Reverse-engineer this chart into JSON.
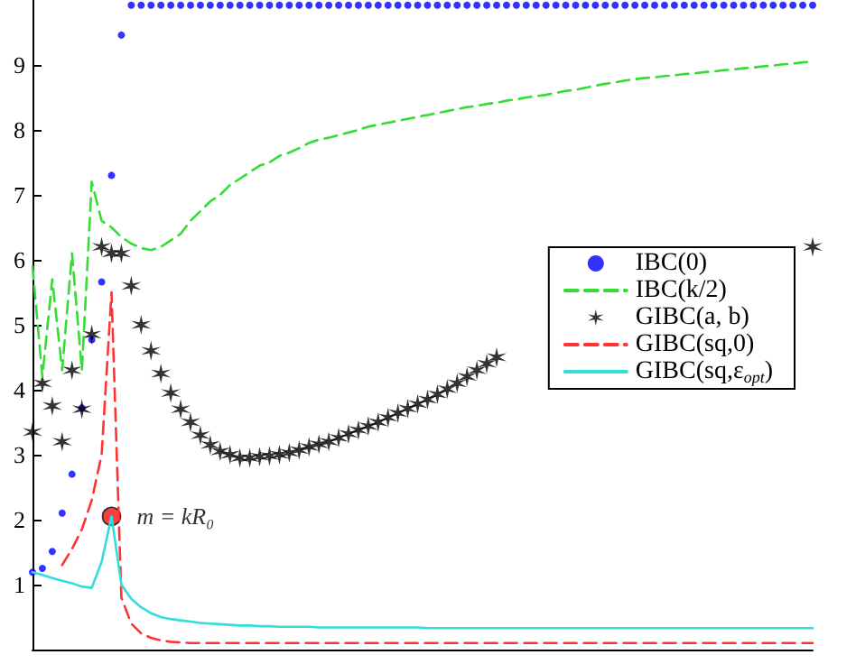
{
  "chart_data": {
    "type": "line",
    "categories": [
      null,
      null,
      null,
      null,
      null,
      null,
      null,
      null,
      null,
      null,
      null,
      null,
      null,
      null,
      null,
      null,
      null,
      null,
      null,
      null,
      null,
      null,
      null,
      null,
      null,
      null,
      null,
      null,
      null,
      null,
      null,
      null,
      null,
      null,
      null,
      null,
      null,
      null,
      null,
      null,
      null,
      null,
      null,
      null,
      null,
      null,
      null,
      null,
      null,
      null,
      null,
      null,
      null,
      null,
      null,
      null,
      null,
      null,
      null,
      null,
      null,
      null,
      null,
      null,
      null,
      null,
      null,
      null,
      null,
      null,
      null,
      null,
      null,
      null,
      null,
      null,
      null,
      null,
      null,
      null
    ],
    "ylim": [
      0,
      10
    ],
    "yticks": [
      1,
      2,
      3,
      4,
      5,
      6,
      7,
      8,
      9
    ],
    "grid": false,
    "legend": "right",
    "annotations": [
      "m = kR₀"
    ],
    "series": [
      {
        "name": "IBC(0)",
        "type": "scatter",
        "marker": "circle",
        "color": "#0000ff",
        "values": [
          1.19,
          1.25,
          1.51,
          2.1,
          2.7,
          3.72,
          4.77,
          5.66,
          7.3,
          9.46,
          9.92,
          9.92,
          9.92,
          9.92,
          9.92,
          9.92,
          9.92,
          9.92,
          9.92,
          9.92,
          9.92,
          9.92,
          9.92,
          9.92,
          9.92,
          9.92,
          9.92,
          9.92,
          9.92,
          9.92,
          9.92,
          9.92,
          9.92,
          9.92,
          9.92,
          9.92,
          9.92,
          9.92,
          9.92,
          9.92,
          9.92,
          9.92,
          9.92,
          9.92,
          9.92,
          9.92,
          9.92,
          9.92,
          9.92,
          9.92,
          9.92,
          9.92,
          9.92,
          9.92,
          9.92,
          9.92,
          9.92,
          9.92,
          9.92,
          9.92,
          9.92,
          9.92,
          9.92,
          9.92,
          9.92,
          9.92,
          9.92,
          9.92,
          9.92,
          9.92,
          9.92,
          9.92,
          9.92,
          9.92,
          9.92,
          9.92,
          9.92,
          9.92,
          9.92,
          9.92
        ]
      },
      {
        "name": "IBC(k/2)",
        "marker": "none",
        "line_style": "dashed",
        "color": "#33dd33",
        "values": [
          5.9,
          4.2,
          5.7,
          4.3,
          6.1,
          4.3,
          7.2,
          6.6,
          6.5,
          6.35,
          6.25,
          6.18,
          6.15,
          6.2,
          6.3,
          6.4,
          6.6,
          6.75,
          6.9,
          7.0,
          7.15,
          7.25,
          7.35,
          7.45,
          7.5,
          7.6,
          7.65,
          7.72,
          7.8,
          7.85,
          7.88,
          7.92,
          7.96,
          8.0,
          8.05,
          8.08,
          8.11,
          8.14,
          8.17,
          8.2,
          8.23,
          8.26,
          8.29,
          8.32,
          8.35,
          8.37,
          8.4,
          8.42,
          8.45,
          8.47,
          8.5,
          8.52,
          8.54,
          8.57,
          8.6,
          8.62,
          8.65,
          8.68,
          8.71,
          8.73,
          8.76,
          8.78,
          8.8,
          8.81,
          8.83,
          8.84,
          8.86,
          8.87,
          8.89,
          8.9,
          8.92,
          8.93,
          8.95,
          8.96,
          8.98,
          8.99,
          9.01,
          9.02,
          9.04,
          9.05
        ]
      },
      {
        "name": "GIBC(a, b)",
        "type": "scatter",
        "marker": "cross",
        "color": "#000000",
        "values": [
          3.35,
          4.1,
          3.75,
          3.2,
          4.3,
          3.7,
          4.85,
          6.2,
          6.1,
          6.1,
          5.6,
          5.0,
          4.6,
          4.25,
          3.95,
          3.7,
          3.5,
          3.3,
          3.15,
          3.05,
          3.0,
          2.95,
          2.95,
          2.97,
          2.98,
          3.0,
          3.03,
          3.07,
          3.12,
          3.16,
          3.2,
          3.26,
          3.32,
          3.38,
          3.44,
          3.5,
          3.57,
          3.64,
          3.71,
          3.78,
          3.85,
          3.93,
          4.01,
          4.1,
          4.2,
          4.3,
          4.4,
          4.5,
          null,
          null,
          null,
          null,
          null,
          null,
          null,
          null,
          null,
          null,
          null,
          null,
          null,
          null,
          null,
          null,
          null,
          null,
          null,
          null,
          null,
          null,
          null,
          null,
          null,
          null,
          null,
          null,
          null,
          null,
          null,
          6.2
        ]
      },
      {
        "name": "GIBC(sq,0)",
        "marker": "none",
        "line_style": "dashed",
        "color": "#ff3333",
        "values": [
          null,
          null,
          null,
          1.3,
          1.55,
          1.85,
          2.3,
          3.0,
          5.5,
          0.8,
          0.4,
          0.25,
          0.18,
          0.14,
          0.12,
          0.11,
          0.1,
          0.1,
          0.1,
          0.1,
          0.1,
          0.1,
          0.1,
          0.1,
          0.1,
          0.1,
          0.1,
          0.1,
          0.1,
          0.1,
          0.1,
          0.1,
          0.1,
          0.1,
          0.1,
          0.1,
          0.1,
          0.1,
          0.1,
          0.1,
          0.1,
          0.1,
          0.1,
          0.1,
          0.1,
          0.1,
          0.1,
          0.1,
          0.1,
          0.1,
          0.1,
          0.1,
          0.1,
          0.1,
          0.1,
          0.1,
          0.1,
          0.1,
          0.1,
          0.1,
          0.1,
          0.1,
          0.1,
          0.1,
          0.1,
          0.1,
          0.1,
          0.1,
          0.1,
          0.1,
          0.1,
          0.1,
          0.1,
          0.1,
          0.1,
          0.1,
          0.1,
          0.1,
          0.1,
          0.1
        ]
      },
      {
        "name": "GIBC(sq,ε$_{opt}$)",
        "marker": "none",
        "line_style": "solid",
        "color": "#33dddd",
        "values": [
          1.19,
          1.15,
          1.1,
          1.06,
          1.02,
          0.97,
          0.95,
          1.35,
          2.05,
          1.0,
          0.78,
          0.65,
          0.56,
          0.5,
          0.47,
          0.45,
          0.43,
          0.41,
          0.4,
          0.39,
          0.38,
          0.37,
          0.37,
          0.36,
          0.36,
          0.35,
          0.35,
          0.35,
          0.35,
          0.34,
          0.34,
          0.34,
          0.34,
          0.34,
          0.34,
          0.34,
          0.34,
          0.34,
          0.34,
          0.34,
          0.33,
          0.33,
          0.33,
          0.33,
          0.33,
          0.33,
          0.33,
          0.33,
          0.33,
          0.33,
          0.33,
          0.33,
          0.33,
          0.33,
          0.33,
          0.33,
          0.33,
          0.33,
          0.33,
          0.33,
          0.33,
          0.33,
          0.33,
          0.33,
          0.33,
          0.33,
          0.33,
          0.33,
          0.33,
          0.33,
          0.33,
          0.33,
          0.33,
          0.33,
          0.33,
          0.33,
          0.33,
          0.33,
          0.33,
          0.33
        ]
      },
      {
        "type": "scatter",
        "marker": "circle",
        "color": "#ee1111",
        "values": [
          null,
          null,
          null,
          null,
          null,
          null,
          null,
          null,
          2.05,
          null,
          null,
          null,
          null,
          null,
          null,
          null,
          null,
          null,
          null,
          null,
          null,
          null,
          null,
          null,
          null,
          null,
          null,
          null,
          null,
          null,
          null,
          null,
          null,
          null,
          null,
          null,
          null,
          null,
          null,
          null,
          null,
          null,
          null,
          null,
          null,
          null,
          null,
          null,
          null,
          null,
          null,
          null,
          null,
          null,
          null,
          null,
          null,
          null,
          null,
          null,
          null,
          null,
          null,
          null,
          null,
          null,
          null,
          null,
          null,
          null,
          null,
          null,
          null,
          null,
          null,
          null,
          null,
          null,
          null,
          null
        ]
      }
    ]
  }
}
